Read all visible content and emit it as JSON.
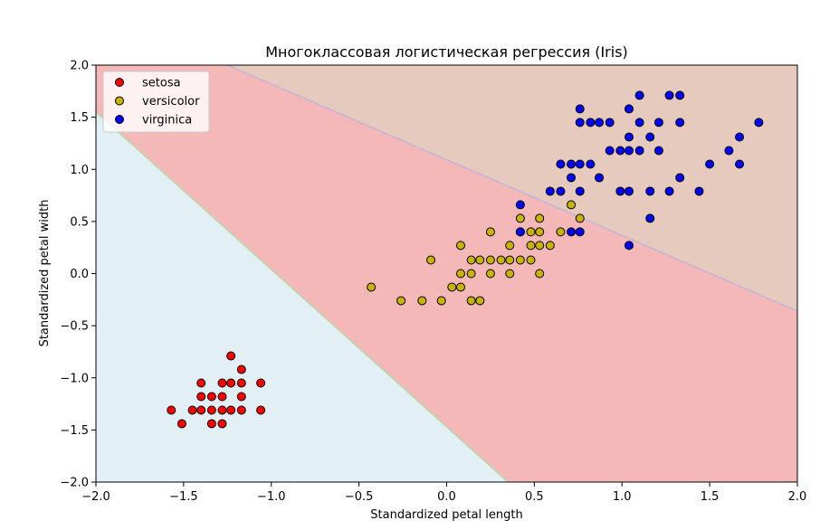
{
  "chart_data": {
    "type": "scatter",
    "title": "Многоклассовая логистическая регрессия (Iris)",
    "xlabel": "Standardized petal length",
    "ylabel": "Standardized petal width",
    "xlim": [
      -2.0,
      2.0
    ],
    "ylim": [
      -2.0,
      2.0
    ],
    "xticks": [
      -2.0,
      -1.5,
      -1.0,
      -0.5,
      0.0,
      0.5,
      1.0,
      1.5,
      2.0
    ],
    "yticks": [
      -2.0,
      -1.5,
      -1.0,
      -0.5,
      0.0,
      0.5,
      1.0,
      1.5,
      2.0
    ],
    "xtick_labels": [
      "−2.0",
      "−1.5",
      "−1.0",
      "−0.5",
      "0.0",
      "0.5",
      "1.0",
      "1.5",
      "2.0"
    ],
    "ytick_labels": [
      "−2.0",
      "−1.5",
      "−1.0",
      "−0.5",
      "0.0",
      "0.5",
      "1.0",
      "1.5",
      "2.0"
    ],
    "grid": false,
    "legend_position": "upper left",
    "decision_regions": [
      {
        "class": "setosa",
        "color": "#e2eff5"
      },
      {
        "class": "versicolor",
        "color": "#f5b8b8"
      },
      {
        "class": "virginica",
        "color": "#e6cabd"
      }
    ],
    "decision_boundaries": [
      {
        "between": [
          "setosa",
          "versicolor"
        ],
        "points": [
          [
            -2.0,
            1.55
          ],
          [
            0.35,
            -2.0
          ]
        ]
      },
      {
        "between": [
          "versicolor",
          "virginica"
        ],
        "points": [
          [
            -1.25,
            2.0
          ],
          [
            2.0,
            -0.36
          ]
        ]
      }
    ],
    "series": [
      {
        "name": "setosa",
        "color": "#ff0000",
        "points": [
          [
            -1.57,
            -1.31
          ],
          [
            -1.51,
            -1.44
          ],
          [
            -1.45,
            -1.31
          ],
          [
            -1.4,
            -1.05
          ],
          [
            -1.4,
            -1.18
          ],
          [
            -1.4,
            -1.31
          ],
          [
            -1.34,
            -1.18
          ],
          [
            -1.34,
            -1.31
          ],
          [
            -1.34,
            -1.44
          ],
          [
            -1.28,
            -1.05
          ],
          [
            -1.28,
            -1.18
          ],
          [
            -1.28,
            -1.31
          ],
          [
            -1.28,
            -1.44
          ],
          [
            -1.23,
            -0.79
          ],
          [
            -1.23,
            -1.05
          ],
          [
            -1.23,
            -1.31
          ],
          [
            -1.17,
            -0.92
          ],
          [
            -1.17,
            -1.05
          ],
          [
            -1.17,
            -1.18
          ],
          [
            -1.17,
            -1.31
          ],
          [
            -1.06,
            -1.05
          ],
          [
            -1.06,
            -1.31
          ]
        ]
      },
      {
        "name": "versicolor",
        "color": "#c8b400",
        "points": [
          [
            -0.43,
            -0.13
          ],
          [
            -0.26,
            -0.26
          ],
          [
            -0.14,
            -0.26
          ],
          [
            -0.09,
            0.13
          ],
          [
            -0.03,
            -0.26
          ],
          [
            0.03,
            -0.13
          ],
          [
            0.08,
            0.27
          ],
          [
            0.08,
            0.0
          ],
          [
            0.08,
            -0.13
          ],
          [
            0.14,
            0.13
          ],
          [
            0.14,
            0.0
          ],
          [
            0.14,
            -0.26
          ],
          [
            0.19,
            0.13
          ],
          [
            0.19,
            -0.26
          ],
          [
            0.25,
            0.4
          ],
          [
            0.25,
            0.13
          ],
          [
            0.25,
            0.0
          ],
          [
            0.31,
            0.13
          ],
          [
            0.36,
            0.27
          ],
          [
            0.36,
            0.13
          ],
          [
            0.36,
            0.0
          ],
          [
            0.42,
            0.53
          ],
          [
            0.42,
            0.4
          ],
          [
            0.42,
            0.13
          ],
          [
            0.48,
            0.4
          ],
          [
            0.48,
            0.27
          ],
          [
            0.48,
            0.13
          ],
          [
            0.53,
            0.53
          ],
          [
            0.53,
            0.4
          ],
          [
            0.53,
            0.27
          ],
          [
            0.53,
            0.0
          ],
          [
            0.59,
            0.27
          ],
          [
            0.65,
            0.4
          ],
          [
            0.71,
            0.66
          ],
          [
            0.76,
            0.53
          ]
        ]
      },
      {
        "name": "virginica",
        "color": "#0000ff",
        "points": [
          [
            0.42,
            0.66
          ],
          [
            0.42,
            0.4
          ],
          [
            0.59,
            0.79
          ],
          [
            0.65,
            1.05
          ],
          [
            0.65,
            0.79
          ],
          [
            0.71,
            1.05
          ],
          [
            0.71,
            0.92
          ],
          [
            0.71,
            0.4
          ],
          [
            0.76,
            1.58
          ],
          [
            0.76,
            1.45
          ],
          [
            0.76,
            1.05
          ],
          [
            0.76,
            0.79
          ],
          [
            0.76,
            0.4
          ],
          [
            0.82,
            1.45
          ],
          [
            0.82,
            1.05
          ],
          [
            0.87,
            1.45
          ],
          [
            0.87,
            0.92
          ],
          [
            0.93,
            1.45
          ],
          [
            0.93,
            1.18
          ],
          [
            0.99,
            1.18
          ],
          [
            0.99,
            0.79
          ],
          [
            1.04,
            1.58
          ],
          [
            1.04,
            1.31
          ],
          [
            1.04,
            1.18
          ],
          [
            1.04,
            0.79
          ],
          [
            1.04,
            0.27
          ],
          [
            1.1,
            1.71
          ],
          [
            1.1,
            1.45
          ],
          [
            1.1,
            1.18
          ],
          [
            1.16,
            1.31
          ],
          [
            1.16,
            0.79
          ],
          [
            1.16,
            0.53
          ],
          [
            1.21,
            1.45
          ],
          [
            1.21,
            1.18
          ],
          [
            1.27,
            1.71
          ],
          [
            1.27,
            0.79
          ],
          [
            1.33,
            1.71
          ],
          [
            1.33,
            1.45
          ],
          [
            1.33,
            0.92
          ],
          [
            1.44,
            0.79
          ],
          [
            1.5,
            1.05
          ],
          [
            1.61,
            1.18
          ],
          [
            1.67,
            1.31
          ],
          [
            1.67,
            1.05
          ],
          [
            1.78,
            1.45
          ]
        ]
      }
    ]
  }
}
